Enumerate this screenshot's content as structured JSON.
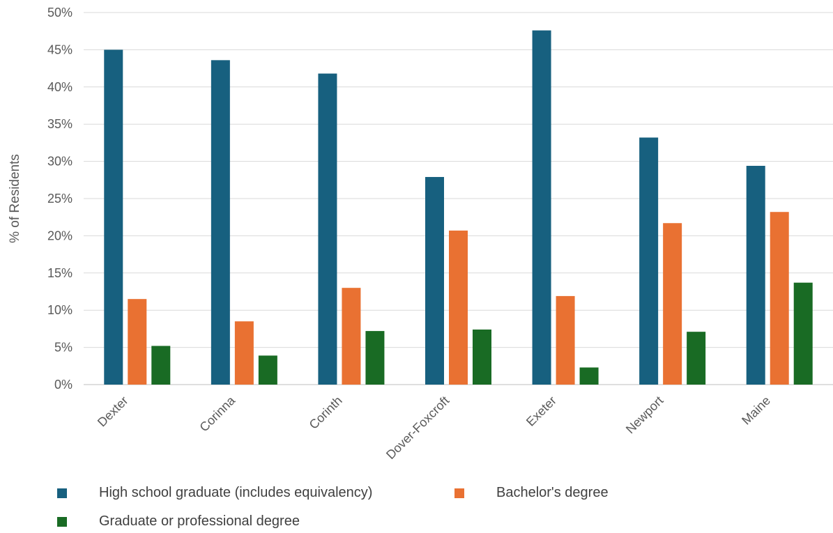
{
  "chart_data": {
    "type": "bar",
    "title": "",
    "xlabel": "",
    "ylabel": "% of Residents",
    "ylim": [
      0,
      50
    ],
    "yticks": [
      "0%",
      "5%",
      "10%",
      "15%",
      "20%",
      "25%",
      "30%",
      "35%",
      "40%",
      "45%",
      "50%"
    ],
    "grid": true,
    "legend_position": "bottom-left",
    "categories": [
      "Dexter",
      "Corinna",
      "Corinth",
      "Dover-Foxcroft",
      "Exeter",
      "Newport",
      "Maine"
    ],
    "series": [
      {
        "name": "High school graduate (includes equivalency)",
        "color": "#17607f",
        "values": [
          45.0,
          43.6,
          41.8,
          27.9,
          47.6,
          33.2,
          29.4
        ]
      },
      {
        "name": "Bachelor's degree",
        "color": "#e97132",
        "values": [
          11.5,
          8.5,
          13.0,
          20.7,
          11.9,
          21.7,
          23.2
        ]
      },
      {
        "name": "Graduate or professional degree",
        "color": "#196b24",
        "values": [
          5.2,
          3.9,
          7.2,
          7.4,
          2.3,
          7.1,
          13.7
        ]
      }
    ]
  }
}
